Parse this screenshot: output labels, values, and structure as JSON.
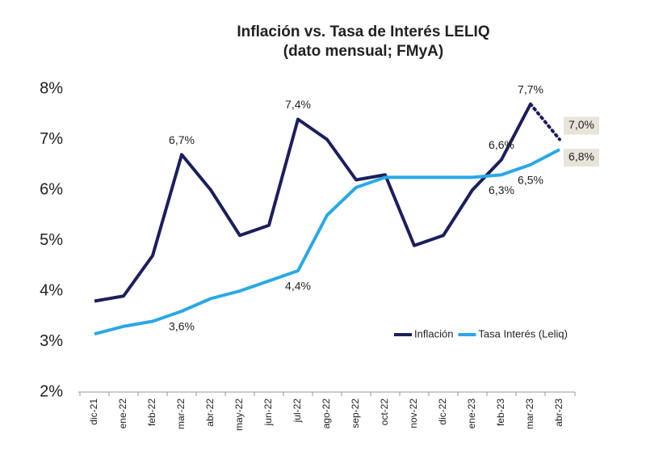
{
  "chart_data": {
    "type": "line",
    "title": "Inflación vs. Tasa de Interés LELIQ",
    "subtitle": "(dato mensual; FMyA)",
    "categories": [
      "dic-21",
      "ene-22",
      "feb-22",
      "mar-22",
      "abr-22",
      "may-22",
      "jun-22",
      "jul-22",
      "ago-22",
      "sep-22",
      "oct-22",
      "nov-22",
      "dic-22",
      "ene-23",
      "feb-23",
      "mar-23",
      "abr-23"
    ],
    "series": [
      {
        "name": "Inflación",
        "color": "#1b1f5c",
        "label_position": "above",
        "dotted_last": true,
        "values": [
          3.8,
          3.9,
          4.7,
          6.7,
          6.0,
          5.1,
          5.3,
          7.4,
          7.0,
          6.2,
          6.3,
          4.9,
          5.1,
          6.0,
          6.6,
          7.7,
          7.0
        ],
        "value_labels": [
          null,
          null,
          null,
          "6,7%",
          null,
          null,
          null,
          "7,4%",
          null,
          null,
          null,
          null,
          null,
          null,
          "6,6%",
          "7,7%",
          "7,0%"
        ]
      },
      {
        "name": "Tasa Interés (Leliq)",
        "color": "#2aa8e6",
        "label_position": "below",
        "dotted_last": false,
        "values": [
          3.15,
          3.3,
          3.4,
          3.6,
          3.85,
          4.0,
          4.2,
          4.4,
          5.5,
          6.05,
          6.25,
          6.25,
          6.25,
          6.25,
          6.3,
          6.5,
          6.8
        ],
        "value_labels": [
          null,
          null,
          null,
          "3,6%",
          null,
          null,
          null,
          "4,4%",
          null,
          null,
          null,
          null,
          null,
          null,
          "6,3%",
          "6,5%",
          "6,8%"
        ]
      }
    ],
    "boxed_last_label": true,
    "ylim": [
      2,
      8
    ],
    "yticks": [
      {
        "value": 2,
        "label": "2%"
      },
      {
        "value": 3,
        "label": "3%"
      },
      {
        "value": 4,
        "label": "4%"
      },
      {
        "value": 5,
        "label": "5%"
      },
      {
        "value": 6,
        "label": "6%"
      },
      {
        "value": 7,
        "label": "7%"
      },
      {
        "value": 8,
        "label": "8%"
      }
    ],
    "grid": false,
    "legend": "lower right"
  }
}
